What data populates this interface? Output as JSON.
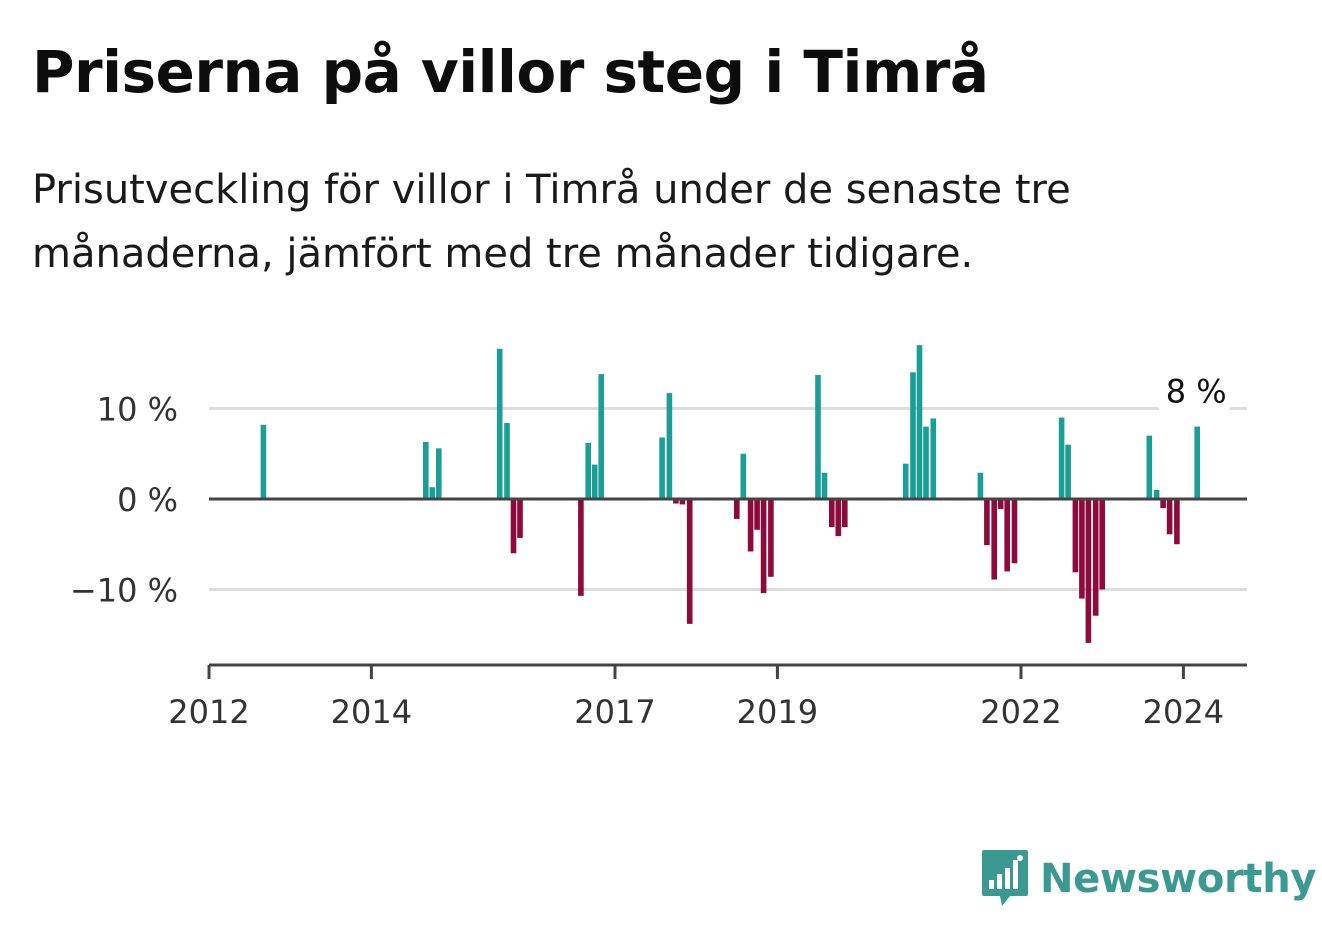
{
  "title": "Priserna på villor steg i Timrå",
  "subtitle": "Prisutveckling för villor i Timrå under de senaste tre månaderna, jämfört med tre månader tidigare.",
  "brand": "Newsworthy",
  "colors": {
    "positive": "#1a9e96",
    "negative": "#8f0a3c",
    "grid": "#dddddd",
    "axis": "#444444",
    "brand": "#3a9a92"
  },
  "chart_data": {
    "type": "bar",
    "ylim": [
      -18,
      18
    ],
    "yticks": [
      {
        "value": 10,
        "label": "10 %"
      },
      {
        "value": 0,
        "label": "0 %"
      },
      {
        "value": -10,
        "label": "−10 %"
      }
    ],
    "xlim": [
      2012.0,
      2024.8
    ],
    "xticks": [
      {
        "value": 2012,
        "label": "2012"
      },
      {
        "value": 2014,
        "label": "2014"
      },
      {
        "value": 2017,
        "label": "2017"
      },
      {
        "value": 2019,
        "label": "2019"
      },
      {
        "value": 2022,
        "label": "2022"
      },
      {
        "value": 2024,
        "label": "2024"
      }
    ],
    "points": [
      {
        "x": 2012.67,
        "y": 8.2
      },
      {
        "x": 2014.67,
        "y": 6.3
      },
      {
        "x": 2014.75,
        "y": 1.3
      },
      {
        "x": 2014.83,
        "y": 5.6
      },
      {
        "x": 2015.58,
        "y": 16.6
      },
      {
        "x": 2015.67,
        "y": 8.4
      },
      {
        "x": 2015.75,
        "y": -6.0
      },
      {
        "x": 2015.83,
        "y": -4.3
      },
      {
        "x": 2016.58,
        "y": -10.7
      },
      {
        "x": 2016.67,
        "y": 6.2
      },
      {
        "x": 2016.75,
        "y": 3.8
      },
      {
        "x": 2016.83,
        "y": 13.8
      },
      {
        "x": 2017.58,
        "y": 6.8
      },
      {
        "x": 2017.67,
        "y": 11.7
      },
      {
        "x": 2017.75,
        "y": -0.5
      },
      {
        "x": 2017.83,
        "y": -0.6
      },
      {
        "x": 2017.92,
        "y": -13.8
      },
      {
        "x": 2018.5,
        "y": -2.2
      },
      {
        "x": 2018.58,
        "y": 5.0
      },
      {
        "x": 2018.67,
        "y": -5.8
      },
      {
        "x": 2018.75,
        "y": -3.4
      },
      {
        "x": 2018.83,
        "y": -10.4
      },
      {
        "x": 2018.92,
        "y": -8.6
      },
      {
        "x": 2019.5,
        "y": 13.7
      },
      {
        "x": 2019.58,
        "y": 2.9
      },
      {
        "x": 2019.67,
        "y": -3.1
      },
      {
        "x": 2019.75,
        "y": -4.1
      },
      {
        "x": 2019.83,
        "y": -3.1
      },
      {
        "x": 2020.58,
        "y": 3.9
      },
      {
        "x": 2020.67,
        "y": 14.0
      },
      {
        "x": 2020.75,
        "y": 17.0
      },
      {
        "x": 2020.83,
        "y": 8.0
      },
      {
        "x": 2020.92,
        "y": 8.9
      },
      {
        "x": 2021.5,
        "y": 2.9
      },
      {
        "x": 2021.58,
        "y": -5.1
      },
      {
        "x": 2021.67,
        "y": -8.9
      },
      {
        "x": 2021.75,
        "y": -1.1
      },
      {
        "x": 2021.83,
        "y": -8.0
      },
      {
        "x": 2021.92,
        "y": -7.1
      },
      {
        "x": 2022.5,
        "y": 9.0
      },
      {
        "x": 2022.58,
        "y": 6.0
      },
      {
        "x": 2022.67,
        "y": -8.1
      },
      {
        "x": 2022.75,
        "y": -11.0
      },
      {
        "x": 2022.83,
        "y": -15.9
      },
      {
        "x": 2022.92,
        "y": -12.9
      },
      {
        "x": 2023.0,
        "y": -10.0
      },
      {
        "x": 2023.58,
        "y": 7.0
      },
      {
        "x": 2023.67,
        "y": 1.0
      },
      {
        "x": 2023.75,
        "y": -1.0
      },
      {
        "x": 2023.83,
        "y": -3.9
      },
      {
        "x": 2023.92,
        "y": -5.0
      },
      {
        "x": 2024.17,
        "y": 8.0
      }
    ],
    "annotation": {
      "x": 2024.17,
      "y": 8.0,
      "label": "8 %"
    },
    "grid": true
  }
}
